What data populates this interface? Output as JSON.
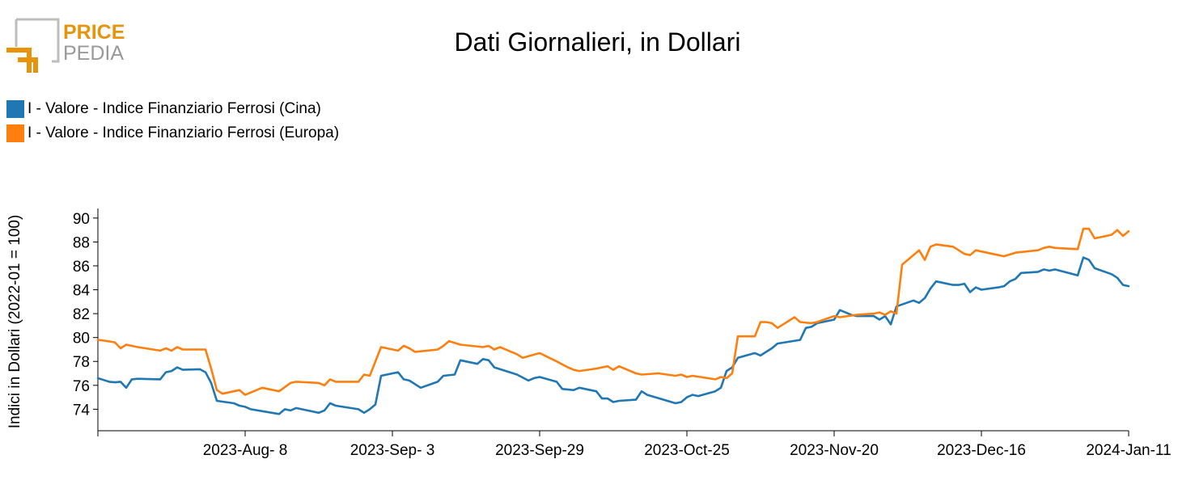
{
  "logo": {
    "word1": "PRICE",
    "word2": "PEDIA",
    "colors": {
      "orange": "#e8930c",
      "gray": "#9a9a9a"
    }
  },
  "chart_data": {
    "type": "line",
    "title": "Dati Giornalieri, in Dollari",
    "xlabel": "",
    "ylabel": "Indici in Dollari (2022-01 = 100)",
    "x_range": [
      "2023-07-13",
      "2024-01-11"
    ],
    "ylim": [
      72.2,
      90.8
    ],
    "y_ticks": [
      74,
      76,
      78,
      80,
      82,
      84,
      86,
      88,
      90
    ],
    "x_ticks": [
      {
        "date": "2023-08-08",
        "label": "2023-Aug- 8"
      },
      {
        "date": "2023-09-03",
        "label": "2023-Sep- 3"
      },
      {
        "date": "2023-09-29",
        "label": "2023-Sep-29"
      },
      {
        "date": "2023-10-25",
        "label": "2023-Oct-25"
      },
      {
        "date": "2023-11-20",
        "label": "2023-Nov-20"
      },
      {
        "date": "2023-12-16",
        "label": "2023-Dec-16"
      },
      {
        "date": "2024-01-11",
        "label": "2024-Jan-11"
      }
    ],
    "grid": false,
    "legend_position": "top-left",
    "series": [
      {
        "name": "I - Valore - Indice Finanziario Ferrosi (Cina)",
        "color": "#1f77b4",
        "points": [
          [
            "2023-07-13",
            76.6
          ],
          [
            "2023-07-14",
            76.45
          ],
          [
            "2023-07-15",
            76.3
          ],
          [
            "2023-07-16",
            76.25
          ],
          [
            "2023-07-17",
            76.3
          ],
          [
            "2023-07-18",
            75.8
          ],
          [
            "2023-07-19",
            76.5
          ],
          [
            "2023-07-20",
            76.55
          ],
          [
            "2023-07-24",
            76.5
          ],
          [
            "2023-07-25",
            77.1
          ],
          [
            "2023-07-26",
            77.2
          ],
          [
            "2023-07-27",
            77.5
          ],
          [
            "2023-07-28",
            77.3
          ],
          [
            "2023-07-31",
            77.35
          ],
          [
            "2023-08-01",
            77.1
          ],
          [
            "2023-08-02",
            76.2
          ],
          [
            "2023-08-03",
            74.7
          ],
          [
            "2023-08-06",
            74.5
          ],
          [
            "2023-08-07",
            74.3
          ],
          [
            "2023-08-08",
            74.2
          ],
          [
            "2023-08-09",
            74.0
          ],
          [
            "2023-08-14",
            73.6
          ],
          [
            "2023-08-15",
            74.0
          ],
          [
            "2023-08-16",
            73.9
          ],
          [
            "2023-08-17",
            74.1
          ],
          [
            "2023-08-21",
            73.7
          ],
          [
            "2023-08-22",
            73.9
          ],
          [
            "2023-08-23",
            74.5
          ],
          [
            "2023-08-24",
            74.3
          ],
          [
            "2023-08-28",
            74.0
          ],
          [
            "2023-08-29",
            73.7
          ],
          [
            "2023-08-30",
            74.0
          ],
          [
            "2023-08-31",
            74.4
          ],
          [
            "2023-09-01",
            76.8
          ],
          [
            "2023-09-04",
            77.1
          ],
          [
            "2023-09-05",
            76.5
          ],
          [
            "2023-09-06",
            76.4
          ],
          [
            "2023-09-08",
            75.8
          ],
          [
            "2023-09-11",
            76.3
          ],
          [
            "2023-09-12",
            76.8
          ],
          [
            "2023-09-14",
            76.9
          ],
          [
            "2023-09-15",
            78.1
          ],
          [
            "2023-09-18",
            77.8
          ],
          [
            "2023-09-19",
            78.2
          ],
          [
            "2023-09-20",
            78.1
          ],
          [
            "2023-09-21",
            77.5
          ],
          [
            "2023-09-25",
            76.9
          ],
          [
            "2023-09-27",
            76.4
          ],
          [
            "2023-09-28",
            76.6
          ],
          [
            "2023-09-29",
            76.7
          ],
          [
            "2023-10-02",
            76.3
          ],
          [
            "2023-10-03",
            75.7
          ],
          [
            "2023-10-05",
            75.6
          ],
          [
            "2023-10-06",
            75.8
          ],
          [
            "2023-10-09",
            75.5
          ],
          [
            "2023-10-10",
            74.9
          ],
          [
            "2023-10-11",
            74.9
          ],
          [
            "2023-10-12",
            74.6
          ],
          [
            "2023-10-13",
            74.7
          ],
          [
            "2023-10-16",
            74.8
          ],
          [
            "2023-10-17",
            75.5
          ],
          [
            "2023-10-18",
            75.2
          ],
          [
            "2023-10-23",
            74.5
          ],
          [
            "2023-10-24",
            74.6
          ],
          [
            "2023-10-25",
            75.0
          ],
          [
            "2023-10-26",
            75.2
          ],
          [
            "2023-10-27",
            75.1
          ],
          [
            "2023-10-30",
            75.5
          ],
          [
            "2023-10-31",
            75.8
          ],
          [
            "2023-11-01",
            77.2
          ],
          [
            "2023-11-02",
            77.5
          ],
          [
            "2023-11-03",
            78.3
          ],
          [
            "2023-11-06",
            78.7
          ],
          [
            "2023-11-07",
            78.5
          ],
          [
            "2023-11-08",
            78.8
          ],
          [
            "2023-11-09",
            79.1
          ],
          [
            "2023-11-10",
            79.5
          ],
          [
            "2023-11-14",
            79.8
          ],
          [
            "2023-11-15",
            80.8
          ],
          [
            "2023-11-16",
            80.9
          ],
          [
            "2023-11-17",
            81.2
          ],
          [
            "2023-11-20",
            81.5
          ],
          [
            "2023-11-21",
            82.3
          ],
          [
            "2023-11-22",
            82.1
          ],
          [
            "2023-11-23",
            81.9
          ],
          [
            "2023-11-24",
            81.8
          ],
          [
            "2023-11-27",
            81.8
          ],
          [
            "2023-11-28",
            81.5
          ],
          [
            "2023-11-29",
            81.8
          ],
          [
            "2023-11-30",
            81.1
          ],
          [
            "2023-12-01",
            82.6
          ],
          [
            "2023-12-04",
            83.1
          ],
          [
            "2023-12-05",
            82.9
          ],
          [
            "2023-12-06",
            83.3
          ],
          [
            "2023-12-07",
            84.1
          ],
          [
            "2023-12-08",
            84.7
          ],
          [
            "2023-12-11",
            84.4
          ],
          [
            "2023-12-12",
            84.4
          ],
          [
            "2023-12-13",
            84.5
          ],
          [
            "2023-12-14",
            83.8
          ],
          [
            "2023-12-15",
            84.2
          ],
          [
            "2023-12-16",
            84.0
          ],
          [
            "2023-12-19",
            84.2
          ],
          [
            "2023-12-20",
            84.3
          ],
          [
            "2023-12-21",
            84.7
          ],
          [
            "2023-12-22",
            84.9
          ],
          [
            "2023-12-23",
            85.4
          ],
          [
            "2023-12-26",
            85.5
          ],
          [
            "2023-12-27",
            85.7
          ],
          [
            "2023-12-28",
            85.6
          ],
          [
            "2023-12-29",
            85.7
          ],
          [
            "2024-01-02",
            85.2
          ],
          [
            "2024-01-03",
            86.7
          ],
          [
            "2024-01-04",
            86.5
          ],
          [
            "2024-01-05",
            85.8
          ],
          [
            "2024-01-08",
            85.3
          ],
          [
            "2024-01-09",
            85.0
          ],
          [
            "2024-01-10",
            84.4
          ],
          [
            "2024-01-11",
            84.3
          ]
        ]
      },
      {
        "name": "I - Valore - Indice Finanziario Ferrosi (Europa)",
        "color": "#ff7f0e",
        "points": [
          [
            "2023-07-13",
            79.8
          ],
          [
            "2023-07-14",
            79.75
          ],
          [
            "2023-07-16",
            79.6
          ],
          [
            "2023-07-17",
            79.1
          ],
          [
            "2023-07-18",
            79.4
          ],
          [
            "2023-07-20",
            79.2
          ],
          [
            "2023-07-24",
            78.9
          ],
          [
            "2023-07-25",
            79.1
          ],
          [
            "2023-07-26",
            78.9
          ],
          [
            "2023-07-27",
            79.2
          ],
          [
            "2023-07-28",
            79.0
          ],
          [
            "2023-08-01",
            79.0
          ],
          [
            "2023-08-02",
            77.4
          ],
          [
            "2023-08-03",
            75.6
          ],
          [
            "2023-08-04",
            75.3
          ],
          [
            "2023-08-07",
            75.6
          ],
          [
            "2023-08-08",
            75.2
          ],
          [
            "2023-08-09",
            75.4
          ],
          [
            "2023-08-11",
            75.8
          ],
          [
            "2023-08-14",
            75.5
          ],
          [
            "2023-08-16",
            76.2
          ],
          [
            "2023-08-17",
            76.3
          ],
          [
            "2023-08-21",
            76.2
          ],
          [
            "2023-08-22",
            76.0
          ],
          [
            "2023-08-23",
            76.5
          ],
          [
            "2023-08-24",
            76.3
          ],
          [
            "2023-08-28",
            76.3
          ],
          [
            "2023-08-29",
            76.9
          ],
          [
            "2023-08-30",
            76.8
          ],
          [
            "2023-09-01",
            79.2
          ],
          [
            "2023-09-04",
            78.9
          ],
          [
            "2023-09-05",
            79.3
          ],
          [
            "2023-09-06",
            79.1
          ],
          [
            "2023-09-07",
            78.8
          ],
          [
            "2023-09-11",
            79.0
          ],
          [
            "2023-09-12",
            79.3
          ],
          [
            "2023-09-13",
            79.7
          ],
          [
            "2023-09-15",
            79.4
          ],
          [
            "2023-09-19",
            79.2
          ],
          [
            "2023-09-20",
            79.3
          ],
          [
            "2023-09-21",
            79.0
          ],
          [
            "2023-09-22",
            79.2
          ],
          [
            "2023-09-25",
            78.6
          ],
          [
            "2023-09-26",
            78.3
          ],
          [
            "2023-09-29",
            78.7
          ],
          [
            "2023-10-02",
            78.0
          ],
          [
            "2023-10-04",
            77.5
          ],
          [
            "2023-10-05",
            77.3
          ],
          [
            "2023-10-06",
            77.2
          ],
          [
            "2023-10-09",
            77.4
          ],
          [
            "2023-10-11",
            77.6
          ],
          [
            "2023-10-12",
            77.3
          ],
          [
            "2023-10-13",
            77.6
          ],
          [
            "2023-10-16",
            77.0
          ],
          [
            "2023-10-17",
            76.9
          ],
          [
            "2023-10-20",
            77.0
          ],
          [
            "2023-10-23",
            76.8
          ],
          [
            "2023-10-24",
            76.9
          ],
          [
            "2023-10-25",
            76.7
          ],
          [
            "2023-10-26",
            76.8
          ],
          [
            "2023-10-30",
            76.5
          ],
          [
            "2023-10-31",
            76.7
          ],
          [
            "2023-11-01",
            76.6
          ],
          [
            "2023-11-02",
            77.0
          ],
          [
            "2023-11-03",
            80.1
          ],
          [
            "2023-11-06",
            80.1
          ],
          [
            "2023-11-07",
            81.3
          ],
          [
            "2023-11-08",
            81.3
          ],
          [
            "2023-11-09",
            81.2
          ],
          [
            "2023-11-10",
            80.8
          ],
          [
            "2023-11-13",
            81.7
          ],
          [
            "2023-11-14",
            81.3
          ],
          [
            "2023-11-16",
            81.2
          ],
          [
            "2023-11-17",
            81.3
          ],
          [
            "2023-11-20",
            81.8
          ],
          [
            "2023-11-21",
            81.7
          ],
          [
            "2023-11-24",
            81.9
          ],
          [
            "2023-11-27",
            82.0
          ],
          [
            "2023-11-28",
            82.1
          ],
          [
            "2023-11-29",
            81.9
          ],
          [
            "2023-11-30",
            82.2
          ],
          [
            "2023-12-01",
            82.0
          ],
          [
            "2023-12-02",
            86.1
          ],
          [
            "2023-12-05",
            87.3
          ],
          [
            "2023-12-06",
            86.5
          ],
          [
            "2023-12-07",
            87.6
          ],
          [
            "2023-12-08",
            87.8
          ],
          [
            "2023-12-11",
            87.6
          ],
          [
            "2023-12-12",
            87.3
          ],
          [
            "2023-12-13",
            87.0
          ],
          [
            "2023-12-14",
            86.9
          ],
          [
            "2023-12-15",
            87.3
          ],
          [
            "2023-12-18",
            87.0
          ],
          [
            "2023-12-19",
            86.9
          ],
          [
            "2023-12-20",
            86.8
          ],
          [
            "2023-12-22",
            87.1
          ],
          [
            "2023-12-26",
            87.3
          ],
          [
            "2023-12-27",
            87.5
          ],
          [
            "2023-12-28",
            87.6
          ],
          [
            "2023-12-29",
            87.5
          ],
          [
            "2024-01-02",
            87.4
          ],
          [
            "2024-01-03",
            89.1
          ],
          [
            "2024-01-04",
            89.1
          ],
          [
            "2024-01-05",
            88.3
          ],
          [
            "2024-01-08",
            88.6
          ],
          [
            "2024-01-09",
            89.0
          ],
          [
            "2024-01-10",
            88.5
          ],
          [
            "2024-01-11",
            88.9
          ]
        ]
      }
    ]
  }
}
